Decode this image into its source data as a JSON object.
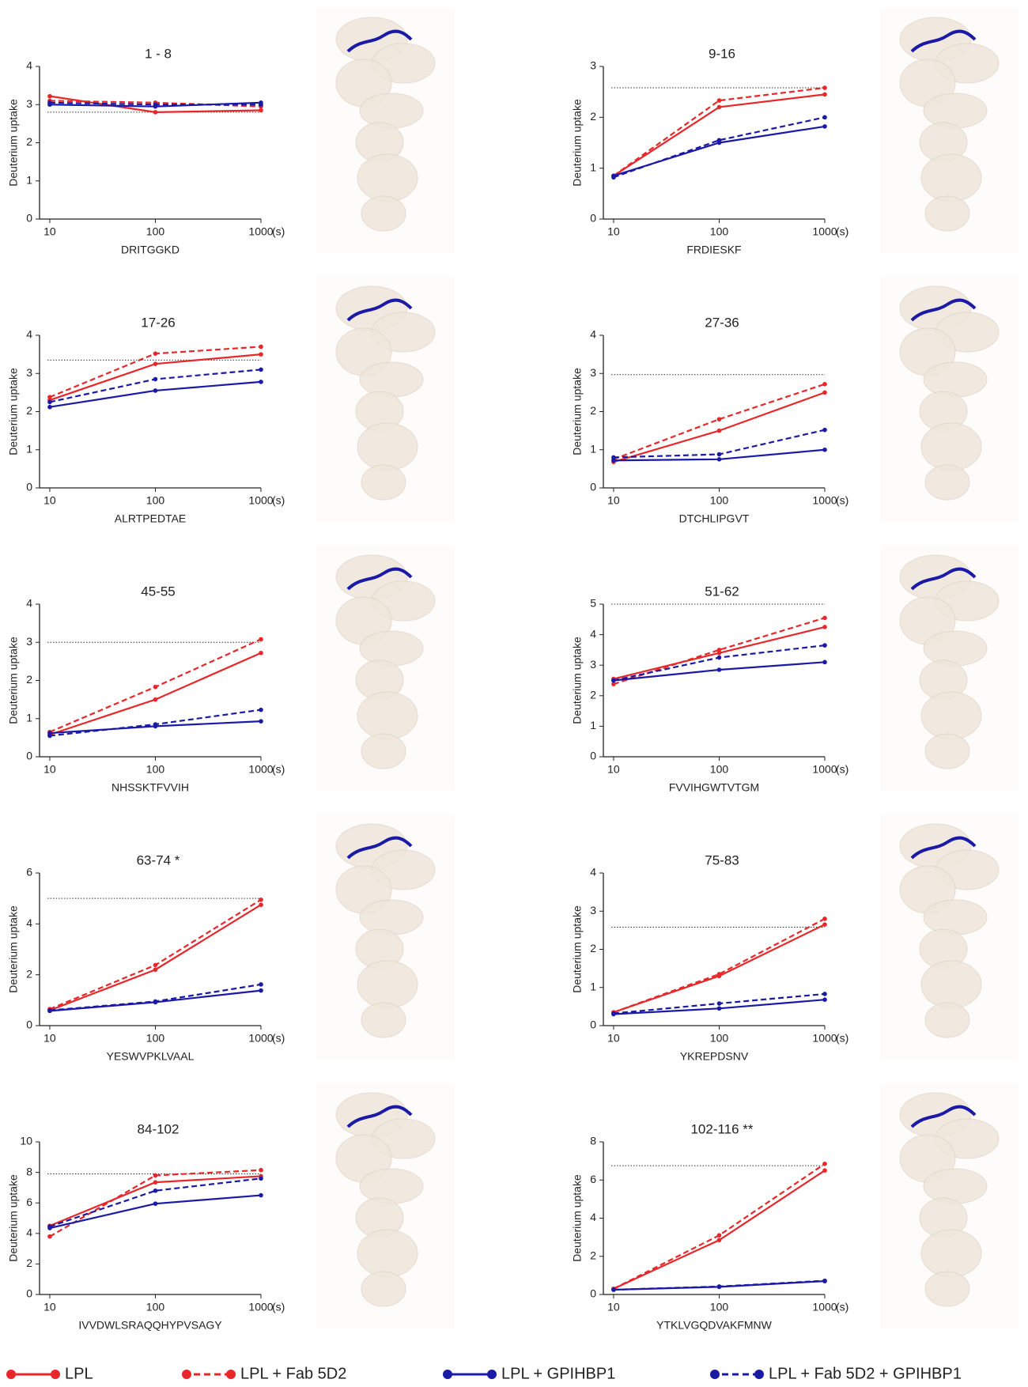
{
  "x_unit": "(s)",
  "legend": [
    {
      "name": "LPL",
      "color": "#e8272a",
      "dash": false
    },
    {
      "name": "LPL + Fab 5D2",
      "color": "#e8272a",
      "dash": true
    },
    {
      "name": "LPL + GPIHBP1",
      "color": "#1a1aa6",
      "dash": false
    },
    {
      "name": "LPL + Fab 5D2 + GPIHBP1",
      "color": "#1a1aa6",
      "dash": true
    }
  ],
  "chart_data": [
    {
      "type": "line",
      "title": "1 - 8",
      "xlabel": "DRITGGKD",
      "ylabel": "Deuterium uptake",
      "x": [
        10,
        100,
        1000
      ],
      "xscale": "log",
      "xlim": [
        8,
        1000
      ],
      "xticks": [
        10,
        100,
        1000
      ],
      "ylim": [
        0,
        4
      ],
      "yticks": [
        0,
        1,
        2,
        3,
        4
      ],
      "hline": 2.8,
      "series": [
        {
          "values": [
            3.22,
            2.8,
            2.85
          ]
        },
        {
          "values": [
            3.1,
            3.05,
            2.95
          ]
        },
        {
          "values": [
            3.0,
            2.95,
            3.05
          ]
        },
        {
          "values": [
            3.05,
            3.0,
            3.0
          ]
        }
      ]
    },
    {
      "type": "line",
      "title": "9-16",
      "xlabel": "FRDIESKF",
      "ylabel": "Deuterium uptake",
      "x": [
        10,
        100,
        1000
      ],
      "xscale": "log",
      "xlim": [
        8,
        1000
      ],
      "xticks": [
        10,
        100,
        1000
      ],
      "ylim": [
        0,
        3
      ],
      "yticks": [
        0,
        1,
        2,
        3
      ],
      "hline": 2.58,
      "series": [
        {
          "values": [
            0.85,
            2.2,
            2.45
          ]
        },
        {
          "values": [
            0.85,
            2.33,
            2.58
          ]
        },
        {
          "values": [
            0.85,
            1.5,
            1.82
          ]
        },
        {
          "values": [
            0.82,
            1.55,
            2.0
          ]
        }
      ]
    },
    {
      "type": "line",
      "title": "17-26",
      "xlabel": "ALRTPEDTAE",
      "ylabel": "Deuterium uptake",
      "x": [
        10,
        100,
        1000
      ],
      "xscale": "log",
      "xlim": [
        8,
        1000
      ],
      "xticks": [
        10,
        100,
        1000
      ],
      "ylim": [
        0,
        4
      ],
      "yticks": [
        0,
        1,
        2,
        3,
        4
      ],
      "hline": 3.35,
      "series": [
        {
          "values": [
            2.3,
            3.25,
            3.5
          ]
        },
        {
          "values": [
            2.38,
            3.52,
            3.7
          ]
        },
        {
          "values": [
            2.12,
            2.55,
            2.78
          ]
        },
        {
          "values": [
            2.25,
            2.85,
            3.1
          ]
        }
      ]
    },
    {
      "type": "line",
      "title": "27-36",
      "xlabel": "DTCHLIPGVT",
      "ylabel": "Deuterium uptake",
      "x": [
        10,
        100,
        1000
      ],
      "xscale": "log",
      "xlim": [
        8,
        1000
      ],
      "xticks": [
        10,
        100,
        1000
      ],
      "ylim": [
        0,
        4
      ],
      "yticks": [
        0,
        1,
        2,
        3,
        4
      ],
      "hline": 2.97,
      "series": [
        {
          "values": [
            0.68,
            1.5,
            2.5
          ]
        },
        {
          "values": [
            0.75,
            1.8,
            2.72
          ]
        },
        {
          "values": [
            0.72,
            0.75,
            1.0
          ]
        },
        {
          "values": [
            0.8,
            0.88,
            1.52
          ]
        }
      ]
    },
    {
      "type": "line",
      "title": "45-55",
      "xlabel": "NHSSKTFVVIH",
      "ylabel": "Deuterium uptake",
      "x": [
        10,
        100,
        1000
      ],
      "xscale": "log",
      "xlim": [
        8,
        1000
      ],
      "xticks": [
        10,
        100,
        1000
      ],
      "ylim": [
        0,
        4
      ],
      "yticks": [
        0,
        1,
        2,
        3,
        4
      ],
      "hline": 3.0,
      "series": [
        {
          "values": [
            0.58,
            1.5,
            2.72
          ]
        },
        {
          "values": [
            0.65,
            1.83,
            3.08
          ]
        },
        {
          "values": [
            0.62,
            0.8,
            0.93
          ]
        },
        {
          "values": [
            0.55,
            0.85,
            1.23
          ]
        }
      ]
    },
    {
      "type": "line",
      "title": "51-62",
      "xlabel": "FVVIHGWTVTGM",
      "ylabel": "Deuterium uptake",
      "x": [
        10,
        100,
        1000
      ],
      "xscale": "log",
      "xlim": [
        8,
        1000
      ],
      "xticks": [
        10,
        100,
        1000
      ],
      "ylim": [
        0,
        5
      ],
      "yticks": [
        0,
        1,
        2,
        3,
        4,
        5
      ],
      "hline": 5.0,
      "series": [
        {
          "values": [
            2.55,
            3.4,
            4.25
          ]
        },
        {
          "values": [
            2.38,
            3.5,
            4.55
          ]
        },
        {
          "values": [
            2.5,
            2.85,
            3.1
          ]
        },
        {
          "values": [
            2.5,
            3.25,
            3.65
          ]
        }
      ]
    },
    {
      "type": "line",
      "title": "63-74 *",
      "xlabel": "YESWVPKLVAAL",
      "ylabel": "Deuterium uptake",
      "x": [
        10,
        100,
        1000
      ],
      "xscale": "log",
      "xlim": [
        8,
        1000
      ],
      "xticks": [
        10,
        100,
        1000
      ],
      "ylim": [
        0,
        6
      ],
      "yticks": [
        0,
        2,
        4,
        6
      ],
      "hline": 5.0,
      "series": [
        {
          "values": [
            0.6,
            2.2,
            4.75
          ]
        },
        {
          "values": [
            0.65,
            2.38,
            4.95
          ]
        },
        {
          "values": [
            0.58,
            0.92,
            1.38
          ]
        },
        {
          "values": [
            0.6,
            0.95,
            1.62
          ]
        }
      ]
    },
    {
      "type": "line",
      "title": "75-83",
      "xlabel": "YKREPDSNV",
      "ylabel": "Deuterium uptake",
      "x": [
        10,
        100,
        1000
      ],
      "xscale": "log",
      "xlim": [
        8,
        1000
      ],
      "xticks": [
        10,
        100,
        1000
      ],
      "ylim": [
        0,
        4
      ],
      "yticks": [
        0,
        1,
        2,
        3,
        4
      ],
      "hline": 2.58,
      "series": [
        {
          "values": [
            0.35,
            1.3,
            2.65
          ]
        },
        {
          "values": [
            0.35,
            1.35,
            2.8
          ]
        },
        {
          "values": [
            0.3,
            0.45,
            0.68
          ]
        },
        {
          "values": [
            0.32,
            0.58,
            0.83
          ]
        }
      ]
    },
    {
      "type": "line",
      "title": "84-102",
      "xlabel": "IVVDWLSRAQQHYPVSAGY",
      "ylabel": "Deuterium uptake",
      "x": [
        10,
        100,
        1000
      ],
      "xscale": "log",
      "xlim": [
        8,
        1000
      ],
      "xticks": [
        10,
        100,
        1000
      ],
      "ylim": [
        0,
        10
      ],
      "yticks": [
        0,
        2,
        4,
        6,
        8,
        10
      ],
      "hline": 7.9,
      "series": [
        {
          "values": [
            4.5,
            7.35,
            7.75
          ]
        },
        {
          "values": [
            3.8,
            7.8,
            8.15
          ]
        },
        {
          "values": [
            4.35,
            5.95,
            6.5
          ]
        },
        {
          "values": [
            4.45,
            6.8,
            7.6
          ]
        }
      ]
    },
    {
      "type": "line",
      "title": "102-116 **",
      "xlabel": "YTKLVGQDVAKFMNW",
      "ylabel": "Deuterium uptake",
      "x": [
        10,
        100,
        1000
      ],
      "xscale": "log",
      "xlim": [
        8,
        1000
      ],
      "xticks": [
        10,
        100,
        1000
      ],
      "ylim": [
        0,
        8
      ],
      "yticks": [
        0,
        2,
        4,
        6,
        8
      ],
      "hline": 6.75,
      "series": [
        {
          "values": [
            0.3,
            2.85,
            6.5
          ]
        },
        {
          "values": [
            0.3,
            3.1,
            6.85
          ]
        },
        {
          "values": [
            0.25,
            0.4,
            0.7
          ]
        },
        {
          "values": [
            0.25,
            0.42,
            0.72
          ]
        }
      ]
    }
  ]
}
